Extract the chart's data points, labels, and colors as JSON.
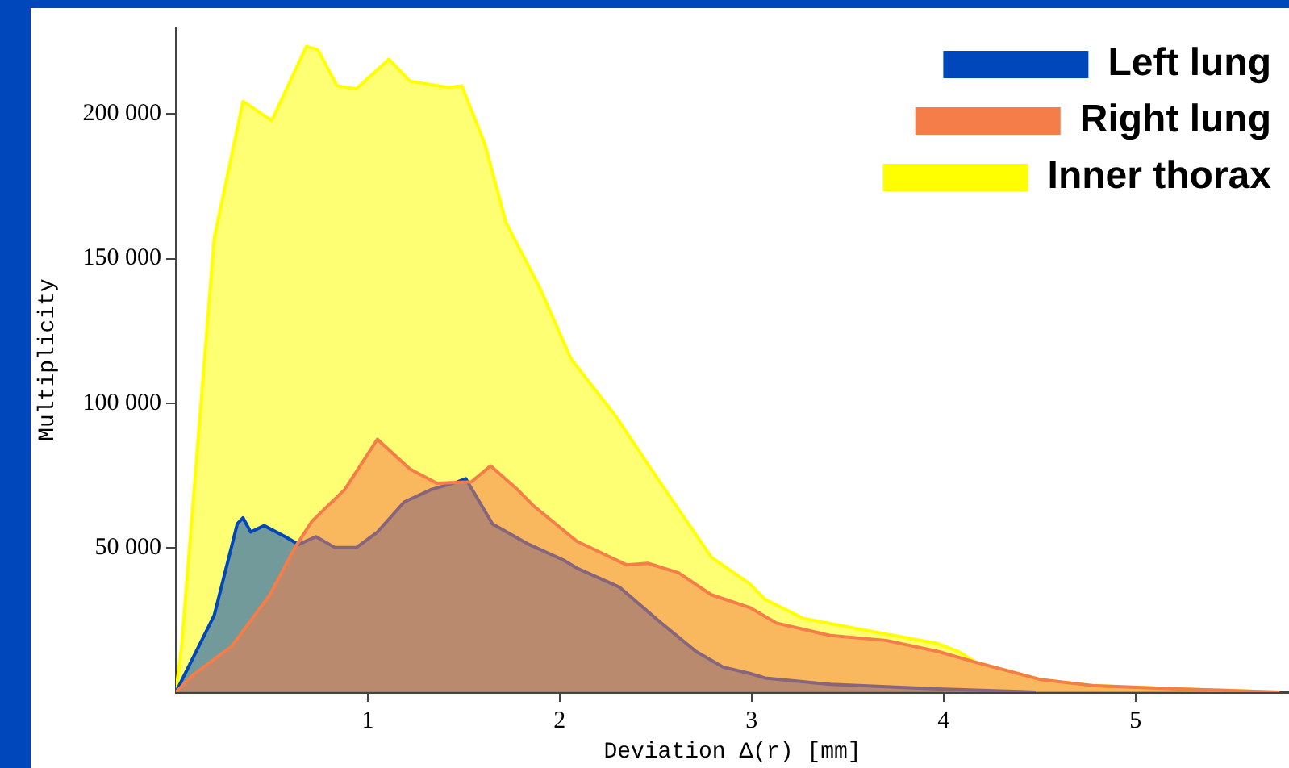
{
  "chart_data": {
    "type": "area",
    "xlabel": "Deviation Δ(r) [mm]",
    "ylabel": "Multiplicity",
    "xlim": [
      0,
      5.8
    ],
    "xticks": [
      1,
      2,
      3,
      4,
      5
    ],
    "ylim": [
      0,
      230000
    ],
    "yticks": [
      {
        "value": 50000,
        "label": "50 000"
      },
      {
        "value": 100000,
        "label": "100 000"
      },
      {
        "value": 150000,
        "label": "150 000"
      },
      {
        "value": 200000,
        "label": "200 000"
      }
    ],
    "grid": false,
    "legend": "top right",
    "series": [
      {
        "name": "Left lung",
        "color": "#0047bb",
        "x": [
          0,
          0.2,
          0.32,
          0.35,
          0.39,
          0.46,
          0.57,
          0.64,
          0.73,
          0.83,
          0.94,
          1.05,
          1.19,
          1.33,
          1.47,
          1.51,
          1.65,
          1.84,
          2.02,
          2.09,
          2.31,
          2.51,
          2.71,
          2.85,
          2.99,
          3.07,
          3.41,
          3.97,
          4.48
        ],
        "values": [
          0,
          26600,
          58200,
          60300,
          55400,
          57600,
          53800,
          51100,
          53800,
          50000,
          50000,
          55400,
          65800,
          70100,
          72800,
          73900,
          58200,
          51100,
          45700,
          42900,
          36400,
          25000,
          14100,
          8700,
          6500,
          4900,
          2700,
          1100,
          0
        ]
      },
      {
        "name": "Right lung",
        "color": "#f47d4a",
        "x": [
          0,
          0.09,
          0.29,
          0.49,
          0.62,
          0.71,
          0.88,
          1.05,
          1.22,
          1.36,
          1.54,
          1.64,
          1.78,
          1.86,
          2.09,
          2.35,
          2.46,
          2.62,
          2.79,
          2.99,
          3.13,
          3.41,
          3.7,
          3.97,
          4.17,
          4.51,
          4.79,
          5.22,
          5.75
        ],
        "values": [
          0,
          6000,
          15800,
          33700,
          50000,
          59200,
          70100,
          87500,
          77200,
          72300,
          72800,
          78300,
          70100,
          64700,
          52200,
          44000,
          44600,
          41300,
          33700,
          29300,
          23900,
          19600,
          17900,
          14100,
          10300,
          4300,
          2200,
          1100,
          0
        ]
      },
      {
        "name": "Inner thorax",
        "color": "#ffff00",
        "x": [
          0,
          0.03,
          0.2,
          0.35,
          0.5,
          0.68,
          0.74,
          0.84,
          0.94,
          1.11,
          1.22,
          1.42,
          1.49,
          1.61,
          1.72,
          1.89,
          2.06,
          2.29,
          2.51,
          2.79,
          2.99,
          3.07,
          3.27,
          3.7,
          3.97,
          4.08,
          4.17,
          4.51,
          4.79,
          5.22,
          5.75
        ],
        "values": [
          0,
          15800,
          157000,
          204400,
          197800,
          223400,
          222300,
          209800,
          208700,
          219000,
          211400,
          209200,
          209800,
          189700,
          162500,
          140800,
          115200,
          95700,
          73900,
          46700,
          37500,
          32100,
          25500,
          20100,
          16800,
          14000,
          10300,
          4300,
          2200,
          1100,
          0
        ]
      }
    ]
  }
}
